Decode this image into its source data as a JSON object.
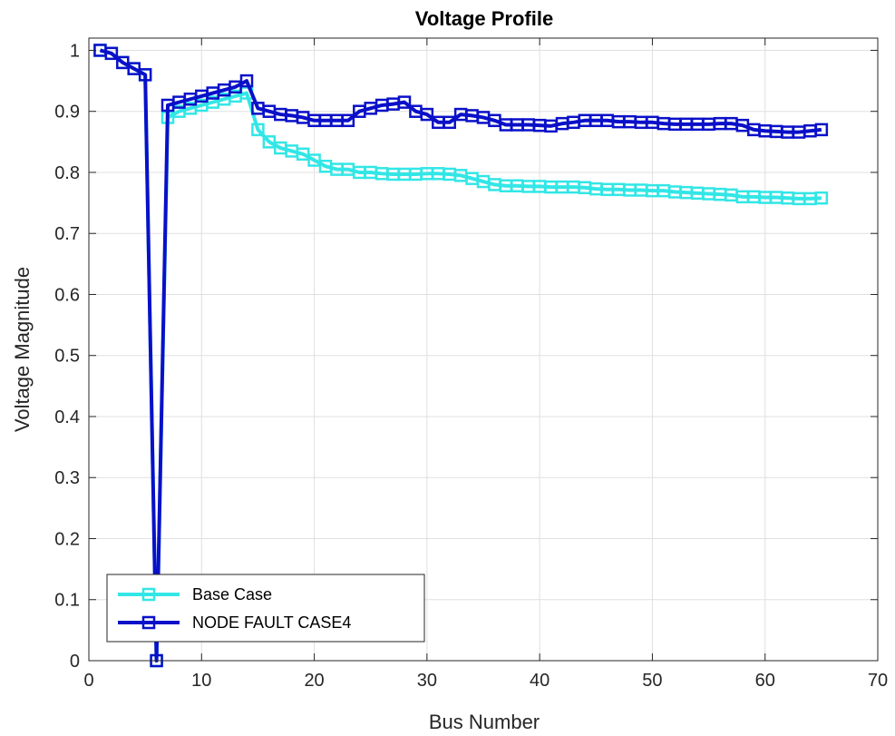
{
  "chart_data": {
    "type": "line",
    "title": "Voltage Profile",
    "xlabel": "Bus Number",
    "ylabel": "Voltage Magnitude",
    "xlim": [
      0,
      70
    ],
    "ylim": [
      0,
      1.02
    ],
    "xticks": [
      "0",
      "10",
      "20",
      "30",
      "40",
      "50",
      "60",
      "70"
    ],
    "yticks": [
      "0",
      "0.1",
      "0.2",
      "0.3",
      "0.4",
      "0.5",
      "0.6",
      "0.7",
      "0.8",
      "0.9",
      "1"
    ],
    "grid": true,
    "legend_position": "bottom-left",
    "x": [
      1,
      2,
      3,
      4,
      5,
      6,
      7,
      8,
      9,
      10,
      11,
      12,
      13,
      14,
      15,
      16,
      17,
      18,
      19,
      20,
      21,
      22,
      23,
      24,
      25,
      26,
      27,
      28,
      29,
      30,
      31,
      32,
      33,
      34,
      35,
      36,
      37,
      38,
      39,
      40,
      41,
      42,
      43,
      44,
      45,
      46,
      47,
      48,
      49,
      50,
      51,
      52,
      53,
      54,
      55,
      56,
      57,
      58,
      59,
      60,
      61,
      62,
      63,
      64,
      65
    ],
    "series": [
      {
        "name": "Base Case",
        "color": "#33e6e6",
        "marker": "square",
        "values": [
          1.0,
          0.995,
          0.98,
          0.97,
          0.96,
          0.0,
          0.89,
          0.9,
          0.905,
          0.91,
          0.915,
          0.92,
          0.925,
          0.93,
          0.87,
          0.85,
          0.84,
          0.835,
          0.83,
          0.82,
          0.81,
          0.805,
          0.805,
          0.8,
          0.8,
          0.798,
          0.797,
          0.797,
          0.797,
          0.798,
          0.798,
          0.797,
          0.795,
          0.79,
          0.785,
          0.78,
          0.778,
          0.778,
          0.777,
          0.777,
          0.776,
          0.776,
          0.776,
          0.775,
          0.773,
          0.772,
          0.772,
          0.771,
          0.771,
          0.77,
          0.77,
          0.768,
          0.767,
          0.766,
          0.765,
          0.764,
          0.763,
          0.76,
          0.76,
          0.759,
          0.759,
          0.758,
          0.757,
          0.757,
          0.758
        ]
      },
      {
        "name": "NODE FAULT CASE4",
        "color": "#0a10c8",
        "marker": "square",
        "values": [
          1.0,
          0.995,
          0.98,
          0.97,
          0.96,
          0.0,
          0.91,
          0.915,
          0.92,
          0.925,
          0.93,
          0.935,
          0.94,
          0.95,
          0.905,
          0.9,
          0.895,
          0.893,
          0.89,
          0.885,
          0.885,
          0.885,
          0.885,
          0.9,
          0.905,
          0.91,
          0.912,
          0.915,
          0.9,
          0.895,
          0.882,
          0.882,
          0.895,
          0.893,
          0.89,
          0.885,
          0.878,
          0.878,
          0.878,
          0.877,
          0.876,
          0.88,
          0.882,
          0.885,
          0.885,
          0.885,
          0.883,
          0.883,
          0.882,
          0.882,
          0.88,
          0.879,
          0.879,
          0.879,
          0.879,
          0.88,
          0.88,
          0.877,
          0.87,
          0.868,
          0.867,
          0.866,
          0.866,
          0.868,
          0.87
        ]
      }
    ]
  }
}
